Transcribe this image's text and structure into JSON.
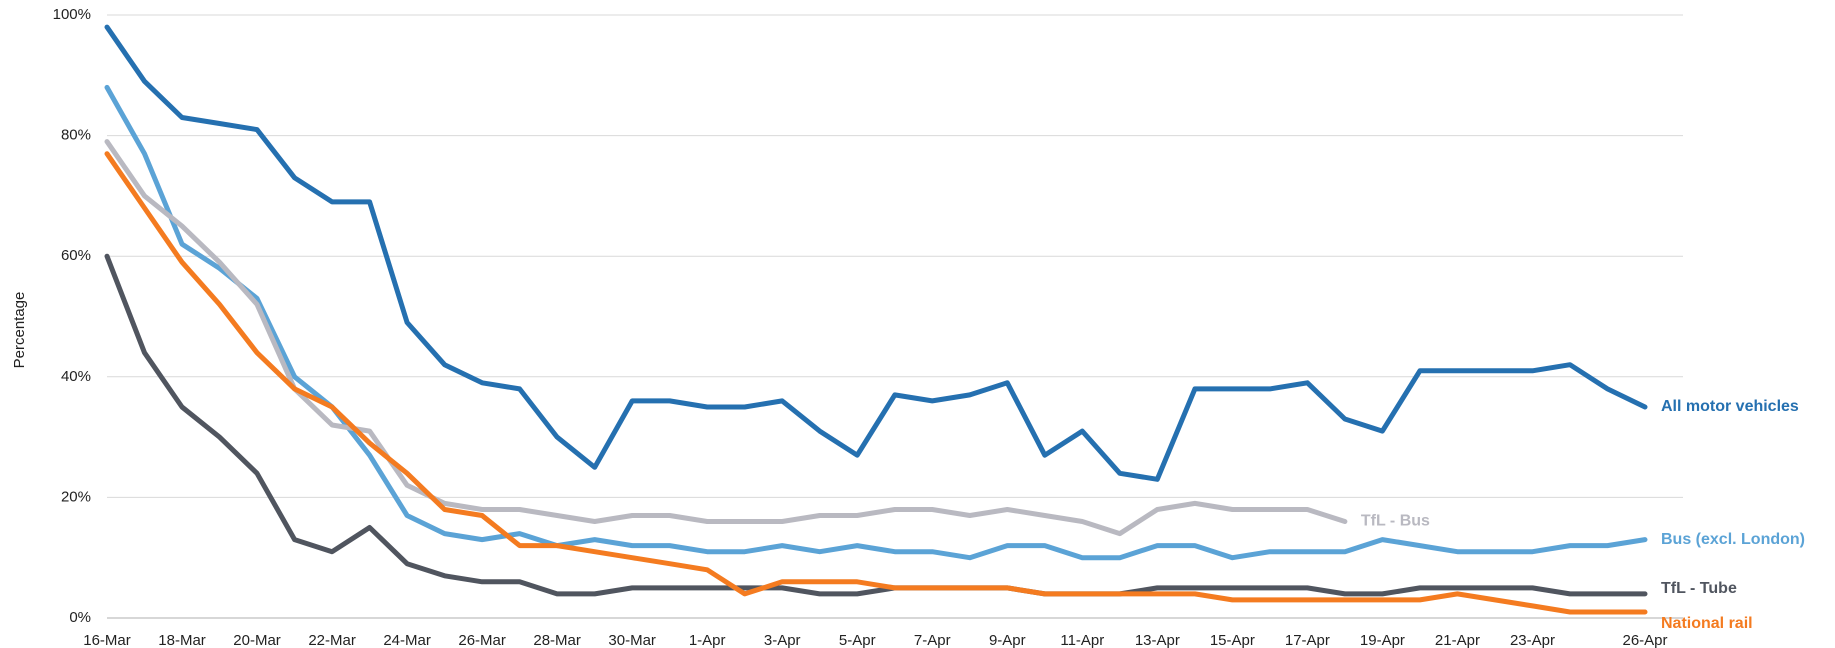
{
  "chart_data": {
    "type": "line",
    "y_label": "Percentage",
    "categories": [
      "16-Mar",
      null,
      "18-Mar",
      null,
      "20-Mar",
      null,
      "22-Mar",
      null,
      "24-Mar",
      null,
      "26-Mar",
      null,
      "28-Mar",
      null,
      "30-Mar",
      null,
      "1-Apr",
      null,
      "3-Apr",
      null,
      "5-Apr",
      null,
      "7-Apr",
      null,
      "9-Apr",
      null,
      "11-Apr",
      null,
      "13-Apr",
      null,
      "15-Apr",
      null,
      "17-Apr",
      null,
      "19-Apr",
      null,
      "21-Apr",
      null,
      "23-Apr",
      null,
      null,
      "26-Apr"
    ],
    "ylim": [
      0,
      100
    ],
    "yticks": [
      {
        "value": 0,
        "label": "0%"
      },
      {
        "value": 20,
        "label": "20%"
      },
      {
        "value": 40,
        "label": "40%"
      },
      {
        "value": 60,
        "label": "60%"
      },
      {
        "value": 80,
        "label": "80%"
      },
      {
        "value": 100,
        "label": "100%"
      }
    ],
    "grid": true,
    "series": [
      {
        "name": "All motor vehicles",
        "color": "#2570b0",
        "values": [
          98,
          89,
          83,
          82,
          81,
          73,
          69,
          69,
          49,
          42,
          39,
          38,
          30,
          25,
          36,
          36,
          35,
          35,
          36,
          31,
          27,
          37,
          36,
          37,
          39,
          27,
          31,
          24,
          23,
          38,
          38,
          38,
          39,
          33,
          31,
          41,
          41,
          41,
          41,
          42,
          38,
          35
        ]
      },
      {
        "name": "Bus (excl. London)",
        "color": "#5ba3d6",
        "values": [
          88,
          77,
          62,
          58,
          53,
          40,
          35,
          27,
          17,
          14,
          13,
          14,
          12,
          13,
          12,
          12,
          11,
          11,
          12,
          11,
          12,
          11,
          11,
          10,
          12,
          12,
          10,
          10,
          12,
          12,
          10,
          11,
          11,
          11,
          13,
          12,
          11,
          11,
          11,
          12,
          12,
          13
        ]
      },
      {
        "name": "TfL - Bus",
        "color": "#b9b9c1",
        "values": [
          79,
          70,
          65,
          59,
          52,
          38,
          32,
          31,
          22,
          19,
          18,
          18,
          17,
          16,
          17,
          17,
          16,
          16,
          16,
          17,
          17,
          18,
          18,
          17,
          18,
          17,
          16,
          14,
          18,
          19,
          18,
          18,
          18,
          16,
          null,
          null,
          null,
          null,
          null,
          null,
          null,
          null
        ]
      },
      {
        "name": "TfL - Tube",
        "color": "#50555f",
        "values": [
          60,
          44,
          35,
          30,
          24,
          13,
          11,
          15,
          9,
          7,
          6,
          6,
          4,
          4,
          5,
          5,
          5,
          5,
          5,
          4,
          4,
          5,
          5,
          5,
          5,
          4,
          4,
          4,
          5,
          5,
          5,
          5,
          5,
          4,
          4,
          5,
          5,
          5,
          5,
          4,
          4,
          4
        ]
      },
      {
        "name": "National rail",
        "color": "#f47b20",
        "values": [
          77,
          68,
          59,
          52,
          44,
          38,
          35,
          29,
          24,
          18,
          17,
          12,
          12,
          11,
          10,
          9,
          8,
          4,
          6,
          6,
          6,
          5,
          5,
          5,
          5,
          4,
          4,
          4,
          4,
          4,
          3,
          3,
          3,
          3,
          3,
          3,
          4,
          3,
          2,
          1,
          1,
          1
        ]
      }
    ]
  }
}
